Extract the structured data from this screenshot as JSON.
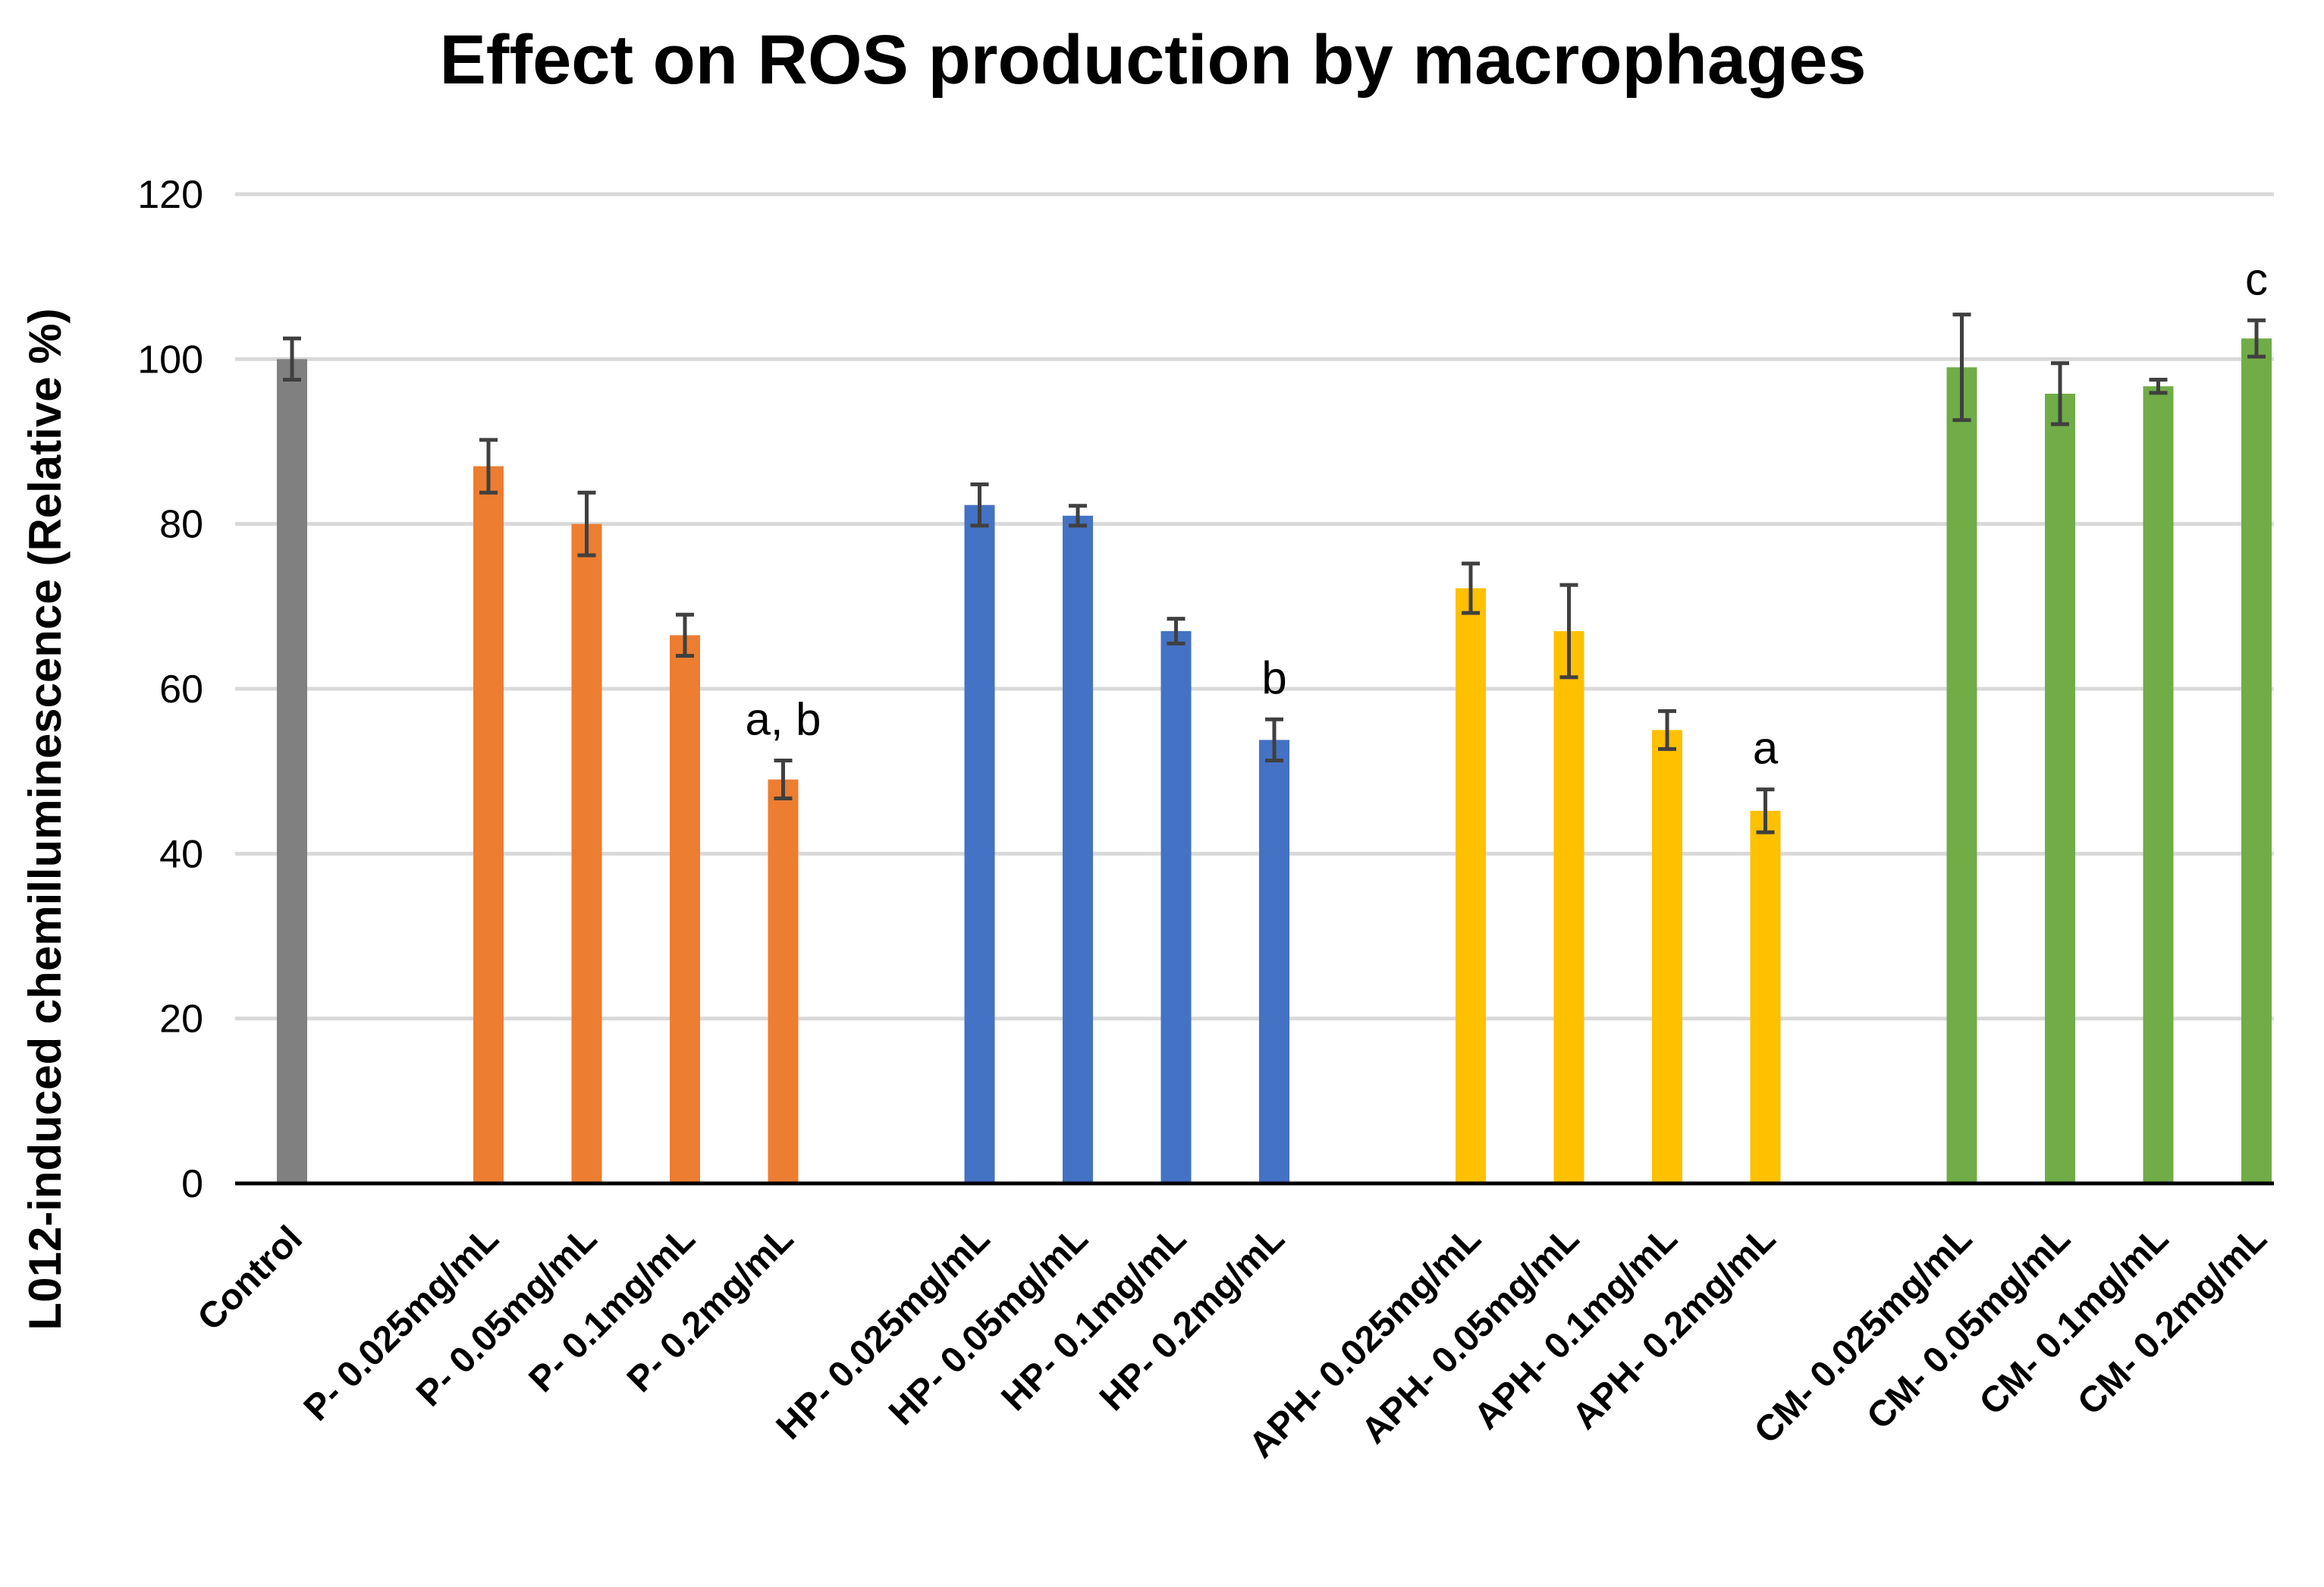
{
  "chart_data": {
    "type": "bar",
    "title": "Effect on ROS production by macrophages",
    "xlabel": "",
    "ylabel": "L012-induced chemilluminescence (Relative %)",
    "ylim": [
      0,
      120
    ],
    "yticks": [
      0,
      20,
      40,
      60,
      80,
      100,
      120
    ],
    "grid": true,
    "legend": "none",
    "colors": {
      "control": "#808080",
      "P": "#ed7d31",
      "HP": "#4472c4",
      "APH": "#ffc000",
      "CM": "#70ad47",
      "error": "#404040",
      "grid": "#d9d9d9"
    },
    "bars": [
      {
        "label": "Control",
        "group": "control",
        "value": 100,
        "err": 2.5,
        "annotation": ""
      },
      {
        "label": "P- 0.025mg/mL",
        "group": "P",
        "value": 87,
        "err": 3.2,
        "annotation": ""
      },
      {
        "label": "P- 0.05mg/mL",
        "group": "P",
        "value": 80,
        "err": 3.8,
        "annotation": ""
      },
      {
        "label": "P- 0.1mg/mL",
        "group": "P",
        "value": 66.5,
        "err": 2.5,
        "annotation": ""
      },
      {
        "label": "P- 0.2mg/mL",
        "group": "P",
        "value": 49,
        "err": 2.3,
        "annotation": "a, b"
      },
      {
        "label": "HP- 0.025mg/mL",
        "group": "HP",
        "value": 82.3,
        "err": 2.5,
        "annotation": ""
      },
      {
        "label": "HP- 0.05mg/mL",
        "group": "HP",
        "value": 81,
        "err": 1.2,
        "annotation": ""
      },
      {
        "label": "HP- 0.1mg/mL",
        "group": "HP",
        "value": 67,
        "err": 1.5,
        "annotation": ""
      },
      {
        "label": "HP- 0.2mg/mL",
        "group": "HP",
        "value": 53.8,
        "err": 2.5,
        "annotation": "b"
      },
      {
        "label": "APH- 0.025mg/mL",
        "group": "APH",
        "value": 72.2,
        "err": 3,
        "annotation": ""
      },
      {
        "label": "APH- 0.05mg/mL",
        "group": "APH",
        "value": 67,
        "err": 5.6,
        "annotation": ""
      },
      {
        "label": "APH- 0.1mg/mL",
        "group": "APH",
        "value": 55,
        "err": 2.3,
        "annotation": ""
      },
      {
        "label": "APH- 0.2mg/mL",
        "group": "APH",
        "value": 45.2,
        "err": 2.6,
        "annotation": "a"
      },
      {
        "label": "CM- 0.025mg/mL",
        "group": "CM",
        "value": 99,
        "err": 6.4,
        "annotation": ""
      },
      {
        "label": "CM- 0.05mg/mL",
        "group": "CM",
        "value": 95.8,
        "err": 3.7,
        "annotation": ""
      },
      {
        "label": "CM- 0.1mg/mL",
        "group": "CM",
        "value": 96.7,
        "err": 0.8,
        "annotation": ""
      },
      {
        "label": "CM- 0.2mg/mL",
        "group": "CM",
        "value": 102.5,
        "err": 2.2,
        "annotation": "c"
      }
    ]
  }
}
